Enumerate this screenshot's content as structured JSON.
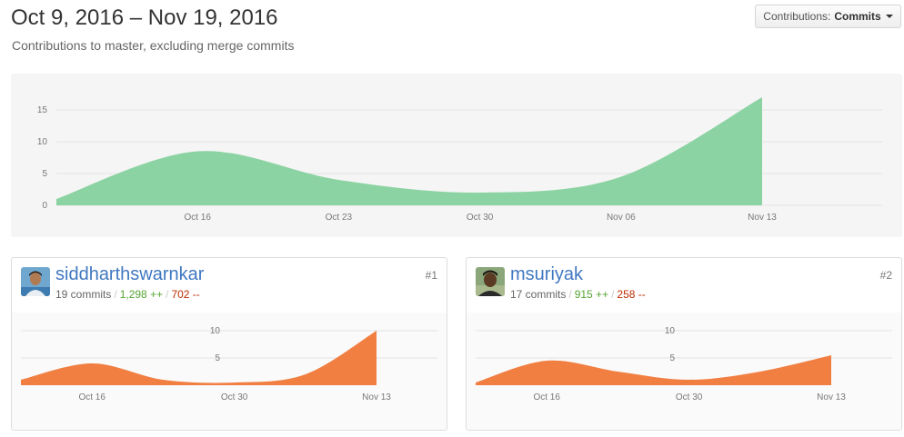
{
  "header": {
    "date_range": "Oct 9, 2016 – Nov 19, 2016",
    "subtitle": "Contributions to master, excluding merge commits"
  },
  "contributions_dropdown": {
    "label": "Contributions:",
    "value": "Commits"
  },
  "colors": {
    "main_area": "#8cd3a3",
    "contributor_area": "#f17f42",
    "link": "#4078c0",
    "additions": "#55a532",
    "deletions": "#bd2c00"
  },
  "chart_data": [
    {
      "type": "area",
      "title": "",
      "xlabel": "",
      "ylabel": "",
      "x_ticks": [
        "Oct 16",
        "Oct 23",
        "Oct 30",
        "Nov 06",
        "Nov 13"
      ],
      "y_ticks": [
        0,
        5,
        10,
        15
      ],
      "ylim": [
        0,
        18
      ],
      "x": [
        "Oct 9",
        "Oct 16",
        "Oct 23",
        "Oct 30",
        "Nov 06",
        "Nov 13"
      ],
      "series": [
        {
          "values": [
            1,
            8.5,
            4,
            2,
            4.5,
            17
          ]
        }
      ],
      "grid": true
    },
    {
      "type": "area",
      "x_ticks": [
        "Oct 16",
        "Oct 30",
        "Nov 13"
      ],
      "y_ticks": [
        5,
        10
      ],
      "ylim": [
        0,
        11
      ],
      "x": [
        "Oct 9",
        "Oct 16",
        "Oct 23",
        "Oct 30",
        "Nov 06",
        "Nov 13"
      ],
      "series": [
        {
          "values": [
            1,
            4,
            1,
            0.5,
            2,
            10
          ]
        }
      ],
      "grid": true
    },
    {
      "type": "area",
      "x_ticks": [
        "Oct 16",
        "Oct 30",
        "Nov 13"
      ],
      "y_ticks": [
        5,
        10
      ],
      "ylim": [
        0,
        11
      ],
      "x": [
        "Oct 9",
        "Oct 16",
        "Oct 23",
        "Oct 30",
        "Nov 06",
        "Nov 13"
      ],
      "series": [
        {
          "values": [
            0.5,
            4.5,
            2.5,
            1,
            2.5,
            5.5
          ]
        }
      ],
      "grid": true
    }
  ],
  "contributors": [
    {
      "username": "siddharthswarnkar",
      "commits": "19 commits",
      "additions": "1,298 ++",
      "deletions": "702 --",
      "rank": "#1"
    },
    {
      "username": "msuriyak",
      "commits": "17 commits",
      "additions": "915 ++",
      "deletions": "258 --",
      "rank": "#2"
    }
  ]
}
